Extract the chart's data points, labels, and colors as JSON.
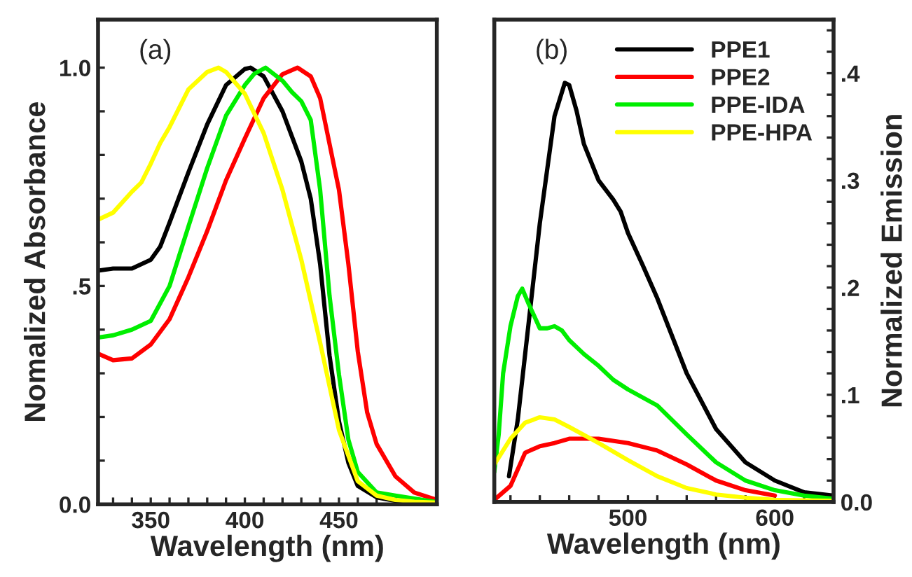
{
  "chart_data": [
    {
      "type": "line",
      "xlabel": "Wavelength (nm)",
      "ylabel": "Nomalized Absorbance",
      "annotations": [
        "(a)"
      ],
      "xlim": [
        322,
        502
      ],
      "ylim": [
        0,
        1.11
      ],
      "xticks": [
        {
          "value": 330,
          "label": null
        },
        {
          "value": 340,
          "label": null
        },
        350,
        {
          "value": 360,
          "label": null
        },
        {
          "value": 370,
          "label": null
        },
        {
          "value": 380,
          "label": null
        },
        {
          "value": 390,
          "label": null
        },
        400,
        {
          "value": 410,
          "label": null
        },
        {
          "value": 420,
          "label": null
        },
        {
          "value": 430,
          "label": null
        },
        {
          "value": 440,
          "label": null
        },
        450,
        {
          "value": 460,
          "label": null
        },
        {
          "value": 470,
          "label": null
        },
        {
          "value": 480,
          "label": null
        },
        {
          "value": 490,
          "label": null
        }
      ],
      "yticks": [
        {
          "value": 0,
          "label": "0.0"
        },
        {
          "value": 0.1,
          "label": null
        },
        {
          "value": 0.2,
          "label": null
        },
        {
          "value": 0.3,
          "label": null
        },
        {
          "value": 0.4,
          "label": null
        },
        {
          "value": 0.5,
          "label": ".5"
        },
        {
          "value": 0.6,
          "label": null
        },
        {
          "value": 0.7,
          "label": null
        },
        {
          "value": 0.8,
          "label": null
        },
        {
          "value": 0.9,
          "label": null
        },
        {
          "value": 1.0,
          "label": "1.0"
        }
      ],
      "grid": false,
      "legend": false,
      "line_style": "solid",
      "marker": "none",
      "series": [
        {
          "color": "#000000",
          "x": [
            322,
            330,
            340,
            350,
            355,
            360,
            370,
            380,
            390,
            400,
            403,
            410,
            420,
            430,
            435,
            440,
            445,
            450,
            455,
            460,
            470,
            480,
            502
          ],
          "values": [
            0.535,
            0.54,
            0.54,
            0.56,
            0.59,
            0.645,
            0.76,
            0.87,
            0.96,
            0.997,
            1.0,
            0.98,
            0.9,
            0.785,
            0.7,
            0.55,
            0.34,
            0.19,
            0.095,
            0.042,
            0.016,
            0.008,
            0.003
          ]
        },
        {
          "color": "#ff0000",
          "x": [
            322,
            330,
            340,
            350,
            360,
            370,
            380,
            390,
            400,
            410,
            420,
            428,
            435,
            440,
            450,
            455,
            460,
            465,
            470,
            480,
            490,
            502
          ],
          "values": [
            0.345,
            0.33,
            0.334,
            0.366,
            0.424,
            0.52,
            0.626,
            0.742,
            0.838,
            0.93,
            0.985,
            1.0,
            0.98,
            0.93,
            0.72,
            0.55,
            0.35,
            0.21,
            0.138,
            0.064,
            0.027,
            0.01
          ]
        },
        {
          "color": "#00ee00",
          "x": [
            322,
            330,
            340,
            350,
            360,
            370,
            380,
            390,
            400,
            405,
            411,
            420,
            425,
            430,
            435,
            440,
            445,
            450,
            455,
            460,
            470,
            480,
            490,
            502
          ],
          "values": [
            0.382,
            0.387,
            0.4,
            0.42,
            0.5,
            0.636,
            0.77,
            0.89,
            0.96,
            0.986,
            1.0,
            0.97,
            0.944,
            0.923,
            0.88,
            0.72,
            0.477,
            0.297,
            0.148,
            0.074,
            0.027,
            0.02,
            0.013,
            0.005
          ]
        },
        {
          "color": "#ffff00",
          "x": [
            322,
            330,
            340,
            345,
            350,
            355,
            360,
            370,
            380,
            386,
            390,
            400,
            410,
            420,
            430,
            440,
            450,
            460,
            470,
            480,
            490,
            502
          ],
          "values": [
            0.652,
            0.668,
            0.716,
            0.737,
            0.78,
            0.827,
            0.864,
            0.95,
            0.99,
            1.0,
            0.99,
            0.94,
            0.85,
            0.72,
            0.56,
            0.37,
            0.17,
            0.053,
            0.02,
            0.01,
            0.006,
            0.004
          ]
        }
      ]
    },
    {
      "type": "line",
      "xlabel": "Wavelength (nm)",
      "ylabel": "Normalized Emission",
      "annotations": [
        "(b)"
      ],
      "xlim": [
        409,
        640
      ],
      "ylim": [
        0,
        0.45
      ],
      "xticks": [
        {
          "value": 420,
          "label": null
        },
        {
          "value": 440,
          "label": null
        },
        {
          "value": 460,
          "label": null
        },
        {
          "value": 480,
          "label": null
        },
        500,
        {
          "value": 520,
          "label": null
        },
        {
          "value": 540,
          "label": null
        },
        {
          "value": 560,
          "label": null
        },
        {
          "value": 580,
          "label": null
        },
        600,
        {
          "value": 620,
          "label": null
        }
      ],
      "yticks": [
        {
          "value": 0,
          "label": "0.0"
        },
        {
          "value": 0.02,
          "label": null
        },
        {
          "value": 0.04,
          "label": null
        },
        {
          "value": 0.06,
          "label": null
        },
        {
          "value": 0.08,
          "label": null
        },
        {
          "value": 0.1,
          "label": ".1"
        },
        {
          "value": 0.12,
          "label": null
        },
        {
          "value": 0.14,
          "label": null
        },
        {
          "value": 0.16,
          "label": null
        },
        {
          "value": 0.18,
          "label": null
        },
        {
          "value": 0.2,
          "label": ".2"
        },
        {
          "value": 0.22,
          "label": null
        },
        {
          "value": 0.24,
          "label": null
        },
        {
          "value": 0.26,
          "label": null
        },
        {
          "value": 0.28,
          "label": null
        },
        {
          "value": 0.3,
          "label": ".3"
        },
        {
          "value": 0.32,
          "label": null
        },
        {
          "value": 0.34,
          "label": null
        },
        {
          "value": 0.36,
          "label": null
        },
        {
          "value": 0.38,
          "label": null
        },
        {
          "value": 0.4,
          "label": ".4"
        },
        {
          "value": 0.42,
          "label": null
        },
        {
          "value": 0.44,
          "label": null
        }
      ],
      "grid": false,
      "legend": "top right",
      "line_style": "solid",
      "marker": "none",
      "series": [
        {
          "name": "PPE1",
          "color": "#000000",
          "x": [
            419,
            425,
            430,
            440,
            450,
            457,
            460,
            465,
            470,
            480,
            490,
            495,
            500,
            510,
            520,
            530,
            540,
            560,
            580,
            600,
            620,
            640
          ],
          "values": [
            0.024,
            0.077,
            0.138,
            0.26,
            0.36,
            0.391,
            0.389,
            0.365,
            0.334,
            0.3,
            0.282,
            0.271,
            0.251,
            0.221,
            0.19,
            0.155,
            0.12,
            0.068,
            0.037,
            0.02,
            0.009,
            0.006
          ]
        },
        {
          "name": "PPE2",
          "color": "#ff0000",
          "x": [
            409,
            420,
            430,
            440,
            450,
            460,
            480,
            500,
            520,
            540,
            560,
            580,
            600
          ],
          "values": [
            0.002,
            0.015,
            0.046,
            0.052,
            0.055,
            0.059,
            0.059,
            0.055,
            0.048,
            0.035,
            0.02,
            0.011,
            0.006
          ]
        },
        {
          "name": "PPE-IDA",
          "color": "#00ee00",
          "x": [
            409,
            412,
            415,
            420,
            425,
            428,
            432,
            440,
            445,
            450,
            455,
            460,
            470,
            480,
            490,
            500,
            520,
            540,
            560,
            580,
            600,
            620,
            640
          ],
          "values": [
            0.028,
            0.063,
            0.12,
            0.164,
            0.192,
            0.199,
            0.186,
            0.162,
            0.162,
            0.164,
            0.16,
            0.151,
            0.138,
            0.127,
            0.114,
            0.105,
            0.09,
            0.063,
            0.037,
            0.02,
            0.011,
            0.006,
            0.003
          ]
        },
        {
          "name": "PPE-HPA",
          "color": "#ffff00",
          "x": [
            409,
            420,
            430,
            440,
            450,
            460,
            480,
            500,
            520,
            540,
            560,
            580,
            600,
            640
          ],
          "values": [
            0.035,
            0.059,
            0.074,
            0.079,
            0.077,
            0.07,
            0.055,
            0.039,
            0.024,
            0.013,
            0.007,
            0.004,
            0.002,
            0.001
          ]
        }
      ]
    }
  ]
}
